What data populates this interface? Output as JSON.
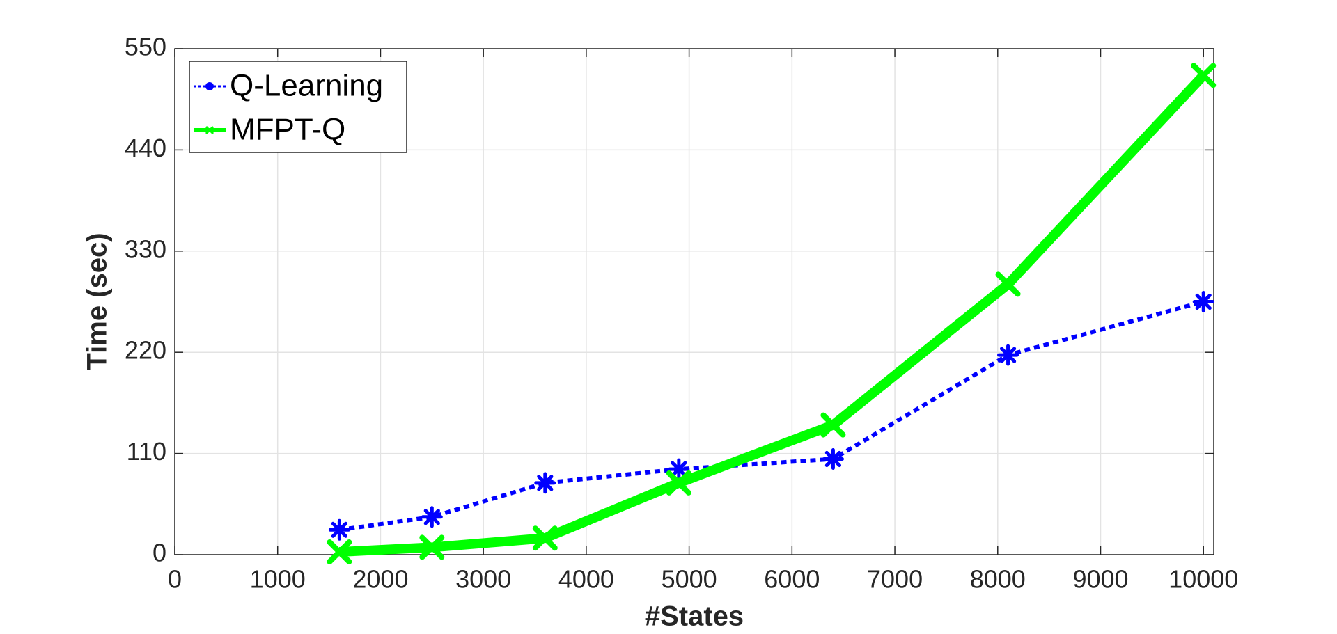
{
  "chart_data": {
    "type": "line",
    "x_label": "#States",
    "y_label": "Time (sec)",
    "x": [
      1600,
      2500,
      3600,
      4900,
      6400,
      8100,
      10000
    ],
    "series": [
      {
        "name": "Q-Learning",
        "color": "#0000ff",
        "values": [
          27,
          41,
          78,
          93,
          104,
          217,
          275
        ]
      },
      {
        "name": "MFPT-Q",
        "color": "#00ff00",
        "values": [
          3,
          8,
          18,
          78,
          141,
          294,
          521
        ]
      }
    ],
    "xlim": [
      0,
      10100
    ],
    "ylim": [
      0,
      550
    ],
    "xticks": [
      0,
      1000,
      2000,
      3000,
      4000,
      5000,
      6000,
      7000,
      8000,
      9000,
      10000
    ],
    "yticks": [
      0,
      110,
      220,
      330,
      440,
      550
    ],
    "grid": true,
    "legend": "upper left"
  }
}
